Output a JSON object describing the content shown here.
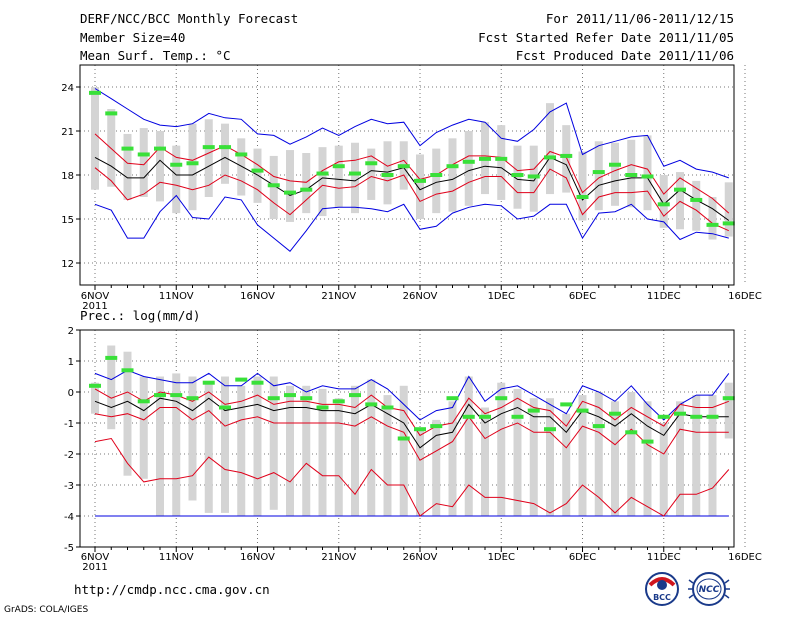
{
  "header": {
    "title": "DERF/NCC/BCC Monthly Forecast",
    "member_size": "Member Size=40",
    "variable": "Mean Surf. Temp.: °C",
    "period": "For 2011/11/06-2011/12/15",
    "started": "Fcst Started Refer Date 2011/11/05",
    "produced": "Fcst Produced Date 2011/11/06"
  },
  "footer": {
    "url": "http://cmdp.ncc.cma.gov.cn",
    "grads": "GrADS: COLA/IGES",
    "logo_left_text": "BCC",
    "logo_right_text": "NCC"
  },
  "colors": {
    "median": "#000000",
    "inner_bounds": "#e0001a",
    "outer_bounds": "#0000e0",
    "spread_bar": "#d4d4d4",
    "climatology": "#39e039",
    "grid": "#777777"
  },
  "chart_data": [
    {
      "type": "line",
      "title": "Mean Surf. Temp.: °C",
      "x_tick_labels": [
        "6NOV",
        "11NOV",
        "16NOV",
        "21NOV",
        "26NOV",
        "1DEC",
        "6DEC",
        "11DEC",
        "16DEC"
      ],
      "x_tick_sublabel": "2011",
      "ylim": [
        10.5,
        25.5
      ],
      "y_ticks": [
        12,
        15,
        18,
        21,
        24
      ],
      "days": [
        0,
        1,
        2,
        3,
        4,
        5,
        6,
        7,
        8,
        9,
        10,
        11,
        12,
        13,
        14,
        15,
        16,
        17,
        18,
        19,
        20,
        21,
        22,
        23,
        24,
        25,
        26,
        27,
        28,
        29,
        30,
        31,
        32,
        33,
        34,
        35,
        36,
        37,
        38,
        39
      ],
      "series": [
        {
          "name": "median",
          "values": [
            19.2,
            18.6,
            17.8,
            17.8,
            19.0,
            18.0,
            18.0,
            18.6,
            19.2,
            18.6,
            18.0,
            17.3,
            16.6,
            17.0,
            17.8,
            17.7,
            17.6,
            18.3,
            18.2,
            18.5,
            17.0,
            17.5,
            17.7,
            18.3,
            18.6,
            18.5,
            17.7,
            17.6,
            19.2,
            18.7,
            16.3,
            17.3,
            17.6,
            17.8,
            17.8,
            16.0,
            17.0,
            16.3,
            15.7,
            14.9
          ]
        },
        {
          "name": "upper_inner",
          "values": [
            20.8,
            19.8,
            18.8,
            18.7,
            19.9,
            19.2,
            19.0,
            19.5,
            20.0,
            19.4,
            18.7,
            17.9,
            17.6,
            17.5,
            18.3,
            18.9,
            19.0,
            19.3,
            18.6,
            19.0,
            17.7,
            18.0,
            18.7,
            19.3,
            19.3,
            19.2,
            18.3,
            18.4,
            19.6,
            19.2,
            16.8,
            17.8,
            18.3,
            18.7,
            18.4,
            16.7,
            17.8,
            17.1,
            16.4,
            15.4
          ]
        },
        {
          "name": "lower_inner",
          "values": [
            18.5,
            17.6,
            16.3,
            16.7,
            17.5,
            17.3,
            17.0,
            17.3,
            18.0,
            17.6,
            17.0,
            16.1,
            15.3,
            16.3,
            17.3,
            17.1,
            17.2,
            17.9,
            17.6,
            18.0,
            16.2,
            16.7,
            16.9,
            17.5,
            17.9,
            17.9,
            16.8,
            16.8,
            18.4,
            17.8,
            15.3,
            16.5,
            16.8,
            16.8,
            16.9,
            15.2,
            16.2,
            15.6,
            14.7,
            14.2
          ]
        },
        {
          "name": "upper_outer",
          "values": [
            23.9,
            23.2,
            22.5,
            21.8,
            21.4,
            21.3,
            21.5,
            22.2,
            21.9,
            21.8,
            20.8,
            20.7,
            20.1,
            20.6,
            21.2,
            20.7,
            21.3,
            21.8,
            21.5,
            21.6,
            20.0,
            20.9,
            21.4,
            21.8,
            21.6,
            20.5,
            20.3,
            21.1,
            22.3,
            22.9,
            19.4,
            20.0,
            20.3,
            20.6,
            20.7,
            18.6,
            19.0,
            18.4,
            18.2,
            17.8
          ]
        },
        {
          "name": "lower_outer",
          "values": [
            16.0,
            15.6,
            13.7,
            13.7,
            15.5,
            16.6,
            15.1,
            15.0,
            16.5,
            16.3,
            14.6,
            13.7,
            12.8,
            14.2,
            15.7,
            15.8,
            15.8,
            15.7,
            15.5,
            16.0,
            14.3,
            14.5,
            15.4,
            15.8,
            16.0,
            15.9,
            15.0,
            15.2,
            16.0,
            16.0,
            13.7,
            15.4,
            15.5,
            16.0,
            15.0,
            14.8,
            13.6,
            14.1,
            14.0,
            13.7
          ]
        },
        {
          "name": "spread_max",
          "values": [
            24.0,
            22.5,
            20.8,
            21.2,
            21.0,
            20.0,
            21.5,
            21.8,
            21.5,
            20.5,
            19.8,
            19.3,
            19.7,
            19.5,
            19.9,
            20.0,
            20.2,
            19.8,
            20.3,
            20.3,
            19.4,
            19.8,
            20.5,
            21.0,
            21.6,
            21.4,
            20.0,
            20.0,
            22.9,
            21.4,
            19.6,
            20.3,
            20.2,
            20.4,
            20.7,
            18.0,
            18.2,
            17.6,
            16.5,
            17.5
          ]
        },
        {
          "name": "spread_min",
          "values": [
            17.0,
            17.2,
            16.3,
            16.5,
            16.2,
            15.4,
            15.6,
            16.5,
            17.4,
            16.6,
            16.1,
            15.0,
            14.8,
            15.4,
            15.2,
            15.8,
            15.4,
            16.3,
            16.0,
            17.0,
            15.0,
            15.4,
            15.5,
            15.9,
            16.7,
            16.3,
            15.7,
            15.5,
            16.7,
            16.8,
            14.9,
            15.6,
            15.9,
            15.8,
            15.6,
            14.4,
            14.3,
            14.2,
            13.6,
            13.8
          ]
        },
        {
          "name": "climatology",
          "values": [
            23.6,
            22.2,
            19.8,
            19.4,
            19.8,
            18.7,
            18.8,
            19.9,
            19.9,
            19.4,
            18.3,
            17.3,
            16.8,
            17.0,
            18.1,
            18.6,
            18.1,
            18.8,
            18.0,
            18.6,
            17.6,
            18.0,
            18.6,
            18.9,
            19.1,
            19.1,
            18.0,
            17.9,
            19.2,
            19.3,
            16.5,
            18.2,
            18.7,
            18.0,
            17.9,
            16.0,
            17.0,
            16.3,
            14.6,
            14.7
          ]
        }
      ]
    },
    {
      "type": "line",
      "title": "Prec.: log(mm/d)",
      "x_tick_labels": [
        "6NOV",
        "11NOV",
        "16NOV",
        "21NOV",
        "26NOV",
        "1DEC",
        "6DEC",
        "11DEC",
        "16DEC"
      ],
      "x_tick_sublabel": "2011",
      "ylim": [
        -5,
        2
      ],
      "y_ticks": [
        -5,
        -4,
        -3,
        -2,
        -1,
        0,
        1,
        2
      ],
      "days": [
        0,
        1,
        2,
        3,
        4,
        5,
        6,
        7,
        8,
        9,
        10,
        11,
        12,
        13,
        14,
        15,
        16,
        17,
        18,
        19,
        20,
        21,
        22,
        23,
        24,
        25,
        26,
        27,
        28,
        29,
        30,
        31,
        32,
        33,
        34,
        35,
        36,
        37,
        38,
        39
      ],
      "series": [
        {
          "name": "median",
          "values": [
            -0.3,
            -0.5,
            -0.3,
            -0.6,
            -0.2,
            -0.3,
            -0.6,
            -0.2,
            -0.6,
            -0.5,
            -0.4,
            -0.6,
            -0.5,
            -0.5,
            -0.6,
            -0.6,
            -0.7,
            -0.4,
            -0.7,
            -1.0,
            -1.8,
            -1.4,
            -1.3,
            -0.4,
            -1.0,
            -0.7,
            -0.5,
            -0.8,
            -0.8,
            -1.3,
            -0.6,
            -0.8,
            -1.1,
            -0.7,
            -1.1,
            -1.4,
            -0.7,
            -0.8,
            -0.8,
            -0.8
          ]
        },
        {
          "name": "upper_inner",
          "values": [
            0.1,
            -0.2,
            0.0,
            -0.3,
            0.0,
            -0.1,
            -0.3,
            0.0,
            -0.4,
            -0.3,
            -0.1,
            -0.4,
            -0.3,
            -0.3,
            -0.4,
            -0.4,
            -0.5,
            -0.1,
            -0.5,
            -0.6,
            -1.4,
            -1.1,
            -1.0,
            -0.2,
            -0.7,
            -0.5,
            -0.2,
            -0.5,
            -0.6,
            -1.1,
            -0.3,
            -0.5,
            -0.9,
            -0.5,
            -0.8,
            -1.1,
            -0.4,
            -0.5,
            -0.5,
            -0.3
          ]
        },
        {
          "name": "lower_inner",
          "values": [
            -0.7,
            -0.8,
            -0.7,
            -0.9,
            -0.5,
            -0.5,
            -0.9,
            -0.6,
            -1.1,
            -0.9,
            -0.8,
            -1.0,
            -1.0,
            -1.0,
            -1.0,
            -1.0,
            -1.1,
            -0.8,
            -1.1,
            -1.3,
            -2.2,
            -1.9,
            -1.6,
            -0.8,
            -1.5,
            -1.2,
            -1.0,
            -1.3,
            -1.3,
            -1.8,
            -1.1,
            -1.3,
            -1.7,
            -1.2,
            -1.7,
            -2.0,
            -1.2,
            -1.3,
            -1.3,
            -1.3
          ]
        },
        {
          "name": "upper_outer",
          "values": [
            0.6,
            0.4,
            0.7,
            0.5,
            0.4,
            0.3,
            0.3,
            0.6,
            0.2,
            0.2,
            0.6,
            0.2,
            0.3,
            0.0,
            0.2,
            0.1,
            0.1,
            0.4,
            0.1,
            -0.4,
            -0.9,
            -0.6,
            -0.5,
            0.5,
            -0.3,
            0.1,
            0.2,
            -0.1,
            -0.4,
            -0.7,
            0.2,
            0.0,
            -0.3,
            0.2,
            -0.4,
            -0.9,
            -0.4,
            -0.1,
            -0.1,
            0.6
          ]
        },
        {
          "name": "lower_outer",
          "values": [
            -1.6,
            -1.5,
            -2.3,
            -2.9,
            -2.8,
            -2.8,
            -2.7,
            -2.1,
            -2.5,
            -2.6,
            -2.8,
            -2.6,
            -2.9,
            -2.3,
            -2.7,
            -2.7,
            -3.3,
            -2.5,
            -3.0,
            -3.0,
            -4.0,
            -3.6,
            -3.7,
            -3.0,
            -3.4,
            -3.4,
            -3.5,
            -3.6,
            -3.9,
            -3.6,
            -3.0,
            -3.4,
            -3.9,
            -3.4,
            -3.7,
            -4.0,
            -3.3,
            -3.3,
            -3.1,
            -2.5
          ]
        },
        {
          "name": "floor",
          "values": [
            -4.0,
            -4.0,
            -4.0,
            -4.0,
            -4.0,
            -4.0,
            -4.0,
            -4.0,
            -4.0,
            -4.0,
            -4.0,
            -4.0,
            -4.0,
            -4.0,
            -4.0,
            -4.0,
            -4.0,
            -4.0,
            -4.0,
            -4.0,
            -4.0,
            -4.0,
            -4.0,
            -4.0,
            -4.0,
            -4.0,
            -4.0,
            -4.0,
            -4.0,
            -4.0,
            -4.0,
            -4.0,
            -4.0,
            -4.0,
            -4.0,
            -4.0,
            -4.0,
            -4.0,
            -4.0,
            -4.0
          ]
        },
        {
          "name": "spread_max",
          "values": [
            0.3,
            1.5,
            1.3,
            0.5,
            0.5,
            0.6,
            0.5,
            0.3,
            0.5,
            0.2,
            0.5,
            0.5,
            0.2,
            0.2,
            0.1,
            -0.2,
            0.2,
            0.4,
            -0.1,
            0.2,
            -1.2,
            -0.9,
            -0.3,
            0.5,
            -0.5,
            0.3,
            0.1,
            -0.2,
            -0.2,
            -0.7,
            -0.1,
            0.0,
            -0.3,
            0.0,
            -0.3,
            -1.0,
            -0.3,
            -0.1,
            -0.1,
            0.3
          ]
        },
        {
          "name": "spread_min",
          "values": [
            -0.7,
            -1.2,
            -2.7,
            -2.8,
            -4.0,
            -4.0,
            -3.5,
            -3.9,
            -3.9,
            -4.0,
            -4.0,
            -3.8,
            -4.0,
            -4.0,
            -4.0,
            -4.0,
            -4.0,
            -4.0,
            -4.0,
            -4.0,
            -4.0,
            -4.0,
            -4.0,
            -4.0,
            -4.0,
            -4.0,
            -4.0,
            -4.0,
            -4.0,
            -4.0,
            -4.0,
            -4.0,
            -4.0,
            -4.0,
            -4.0,
            -4.0,
            -4.0,
            -4.0,
            -4.0,
            -1.5
          ]
        },
        {
          "name": "climatology",
          "values": [
            0.2,
            1.1,
            0.7,
            -0.3,
            -0.1,
            -0.1,
            -0.2,
            0.3,
            -0.5,
            0.4,
            0.3,
            -0.2,
            -0.1,
            -0.2,
            -0.5,
            -0.3,
            -0.1,
            -0.4,
            -0.5,
            -1.5,
            -1.2,
            -1.1,
            -0.2,
            -0.8,
            -0.8,
            -0.2,
            -0.8,
            -0.6,
            -1.2,
            -0.4,
            -0.6,
            -1.1,
            -0.7,
            -1.3,
            -1.6,
            -0.8,
            -0.7,
            -0.8,
            -0.8,
            -0.2
          ]
        }
      ]
    }
  ]
}
